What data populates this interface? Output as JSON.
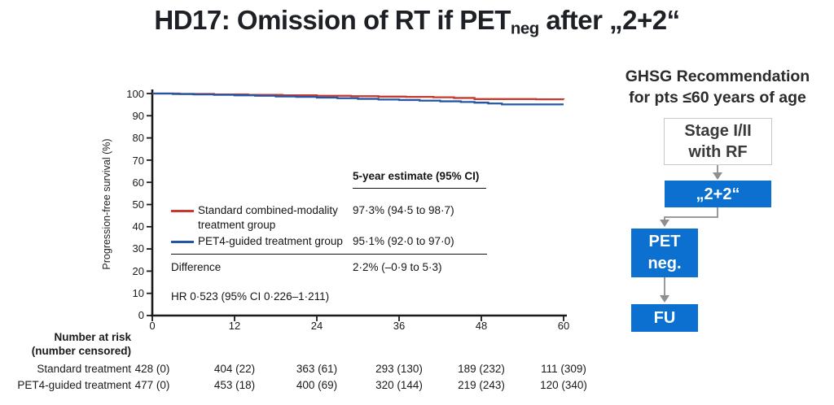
{
  "slide": {
    "title": {
      "prefix": "HD17: Omission of RT if PET",
      "subscript": "neg",
      "suffix": " after „2+2“"
    }
  },
  "chart": {
    "y_axis_label": "Progression-free survival (%)",
    "y_tick_labels": [
      "100",
      "90",
      "80",
      "70",
      "60",
      "50",
      "40",
      "30",
      "20",
      "10",
      "0"
    ],
    "x_tick_labels": [
      "0",
      "12",
      "24",
      "36",
      "48",
      "60"
    ],
    "estimate_table": {
      "header": "5-year estimate (95% CI)",
      "row1_label_line1": "Standard combined-modality",
      "row1_label_line2": "treatment group",
      "row1_value": "97·3% (94·5 to 98·7)",
      "row2_label": "PET4-guided treatment group",
      "row2_value": "95·1% (92·0 to 97·0)",
      "difference_label": "Difference",
      "difference_value": "2·2% (–0·9 to 5·3)",
      "hr_text": "HR 0·523 (95% CI 0·226–1·211)"
    },
    "risk_table": {
      "header_line1": "Number at risk",
      "header_line2": "(number censored)",
      "rows": [
        {
          "label": "Standard treatment",
          "values": [
            "428 (0)",
            "404 (22)",
            "363 (61)",
            "293 (130)",
            "189 (232)",
            "111 (309)"
          ]
        },
        {
          "label": "PET4-guided treatment",
          "values": [
            "477 (0)",
            "453 (18)",
            "400 (69)",
            "320 (144)",
            "219 (243)",
            "120 (340)"
          ]
        }
      ]
    }
  },
  "chart_data": {
    "type": "line",
    "subtype": "kaplan-meier-step",
    "title": "",
    "xlabel": "",
    "ylabel": "Progression-free survival (%)",
    "xlim": [
      0,
      60
    ],
    "ylim": [
      0,
      100
    ],
    "x_ticks": [
      0,
      12,
      24,
      36,
      48,
      60
    ],
    "y_ticks": [
      0,
      10,
      20,
      30,
      40,
      50,
      60,
      70,
      80,
      90,
      100
    ],
    "grid": false,
    "legend_position": "inside-left",
    "axis_color": "#1a1a1a",
    "series": [
      {
        "name": "Standard combined-modality treatment group",
        "color": "#c8382f",
        "five_year_estimate": "97.3% (94.5 to 98.7)",
        "points": [
          [
            0,
            100
          ],
          [
            4,
            99.8
          ],
          [
            9,
            99.6
          ],
          [
            14,
            99.4
          ],
          [
            19,
            99.2
          ],
          [
            24,
            99.0
          ],
          [
            29,
            98.8
          ],
          [
            33,
            98.6
          ],
          [
            37,
            98.5
          ],
          [
            41,
            98.3
          ],
          [
            44,
            98.0
          ],
          [
            47,
            97.5
          ],
          [
            56,
            97.4
          ],
          [
            60,
            97.3
          ]
        ]
      },
      {
        "name": "PET4-guided treatment group",
        "color": "#2356a4",
        "five_year_estimate": "95.1% (92.0 to 97.0)",
        "points": [
          [
            0,
            100
          ],
          [
            3,
            99.8
          ],
          [
            6,
            99.6
          ],
          [
            9,
            99.4
          ],
          [
            12,
            99.2
          ],
          [
            15,
            99.0
          ],
          [
            18,
            98.7
          ],
          [
            21,
            98.5
          ],
          [
            24,
            98.2
          ],
          [
            27,
            97.9
          ],
          [
            30,
            97.6
          ],
          [
            33,
            97.3
          ],
          [
            36,
            97.1
          ],
          [
            39,
            96.8
          ],
          [
            42,
            96.5
          ],
          [
            45,
            96.2
          ],
          [
            47,
            95.9
          ],
          [
            49,
            95.5
          ],
          [
            51,
            95.1
          ],
          [
            60,
            95.1
          ]
        ]
      }
    ],
    "annotations": {
      "difference": "2.2% (-0.9 to 5.3)",
      "hazard_ratio": "HR 0.523 (95% CI 0.226-1.211)"
    }
  },
  "flowchart": {
    "heading_line1": "GHSG Recommendation",
    "heading_line2": "for pts ≤60 years of age",
    "box_stage_line1": "Stage I/II",
    "box_stage_line2": "with RF",
    "box_22": "„2+2“",
    "box_pet_line1": "PET",
    "box_pet_line2": "neg.",
    "box_fu": "FU",
    "accent_color": "#0b70d0",
    "arrow_color": "#8f8f8f"
  }
}
